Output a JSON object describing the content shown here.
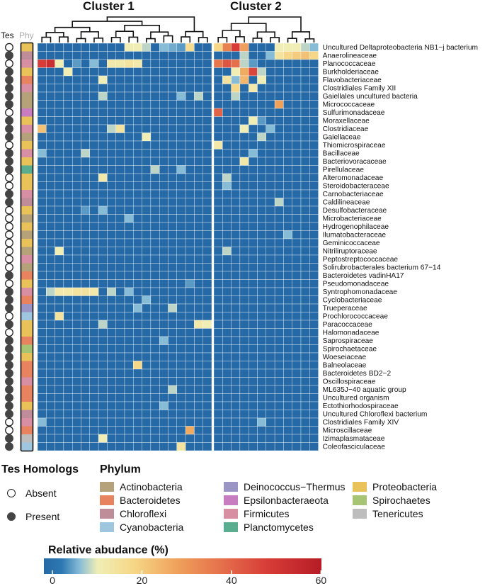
{
  "chart_data": {
    "type": "heatmap",
    "column_groups": [
      {
        "title": "Cluster 1",
        "n_columns": 20
      },
      {
        "title": "Cluster 2",
        "n_columns": 12
      }
    ],
    "annotation_headers": [
      "Tes",
      "Phy"
    ],
    "rows": [
      {
        "label": "Uncultured Deltaproteobacteria NB1−j bacterium",
        "tes": "Absent",
        "phylum": "Proteobacteria"
      },
      {
        "label": "Anaerolineaceae",
        "tes": "Present",
        "phylum": "Chloroflexi"
      },
      {
        "label": "Planococcaceae",
        "tes": "Absent",
        "phylum": "Firmicutes"
      },
      {
        "label": "Burkholderiaceae",
        "tes": "Present",
        "phylum": "Proteobacteria"
      },
      {
        "label": "Flavobacteriaceae",
        "tes": "Present",
        "phylum": "Bacteroidetes"
      },
      {
        "label": "Clostridiales Family XII",
        "tes": "Present",
        "phylum": "Firmicutes"
      },
      {
        "label": "Gaiellales uncultured bacteria",
        "tes": "Present",
        "phylum": "Actinobacteria"
      },
      {
        "label": "Micrococcaceae",
        "tes": "Present",
        "phylum": "Actinobacteria"
      },
      {
        "label": "Sulfurimonadaceae",
        "tes": "Absent",
        "phylum": "Epsilonbacteraeota"
      },
      {
        "label": "Moraxellaceae",
        "tes": "Present",
        "phylum": "Proteobacteria"
      },
      {
        "label": "Clostridiaceae",
        "tes": "Present",
        "phylum": "Firmicutes"
      },
      {
        "label": "Gaiellaceae",
        "tes": "Present",
        "phylum": "Actinobacteria"
      },
      {
        "label": "Thiomicrospiraceae",
        "tes": "Absent",
        "phylum": "Proteobacteria"
      },
      {
        "label": "Bacillaceae",
        "tes": "Present",
        "phylum": "Firmicutes"
      },
      {
        "label": "Bacteriovoracaceae",
        "tes": "Present",
        "phylum": "Proteobacteria"
      },
      {
        "label": "Pirellulaceae",
        "tes": "Present",
        "phylum": "Planctomycetes"
      },
      {
        "label": "Alteromonadaceae",
        "tes": "Absent",
        "phylum": "Proteobacteria"
      },
      {
        "label": "Steroidobacteraceae",
        "tes": "Absent",
        "phylum": "Proteobacteria"
      },
      {
        "label": "Carnobacteriaceae",
        "tes": "Present",
        "phylum": "Firmicutes"
      },
      {
        "label": "Caldilineaceae",
        "tes": "Present",
        "phylum": "Chloroflexi"
      },
      {
        "label": "Desulfobacteraceae",
        "tes": "Absent",
        "phylum": "Proteobacteria"
      },
      {
        "label": "Microbacteriaceae",
        "tes": "Absent",
        "phylum": "Actinobacteria"
      },
      {
        "label": "Hydrogenophilaceae",
        "tes": "Absent",
        "phylum": "Proteobacteria"
      },
      {
        "label": "Ilumatobacteraceae",
        "tes": "Absent",
        "phylum": "Actinobacteria"
      },
      {
        "label": "Geminicoccaceae",
        "tes": "Absent",
        "phylum": "Proteobacteria"
      },
      {
        "label": "Nitriliruptoraceae",
        "tes": "Absent",
        "phylum": "Actinobacteria"
      },
      {
        "label": "Peptostreptococcaceae",
        "tes": "Absent",
        "phylum": "Firmicutes"
      },
      {
        "label": "Solirubrobacterales bacterium 67−14",
        "tes": "Absent",
        "phylum": "Actinobacteria"
      },
      {
        "label": "Bacteroidetes vadinHA17",
        "tes": "Present",
        "phylum": "Bacteroidetes"
      },
      {
        "label": "Pseudomonadaceae",
        "tes": "Absent",
        "phylum": "Proteobacteria"
      },
      {
        "label": "Syntrophomonadaceae",
        "tes": "Present",
        "phylum": "Firmicutes"
      },
      {
        "label": "Cyclobacteriaceae",
        "tes": "Present",
        "phylum": "Bacteroidetes"
      },
      {
        "label": "Trueperaceae",
        "tes": "Present",
        "phylum": "Deinococcus−Thermus"
      },
      {
        "label": "Prochlorococcaceae",
        "tes": "Absent",
        "phylum": "Cyanobacteria"
      },
      {
        "label": "Paracoccaceae",
        "tes": "Present",
        "phylum": "Proteobacteria"
      },
      {
        "label": "Halomonadaceae",
        "tes": "Absent",
        "phylum": "Proteobacteria"
      },
      {
        "label": "Saprospiraceae",
        "tes": "Present",
        "phylum": "Bacteroidetes"
      },
      {
        "label": "Spirochaetaceae",
        "tes": "Present",
        "phylum": "Spirochaetes"
      },
      {
        "label": "Woeseiaceae",
        "tes": "Present",
        "phylum": "Proteobacteria"
      },
      {
        "label": "Balneolaceae",
        "tes": "Present",
        "phylum": "Bacteroidetes"
      },
      {
        "label": "Bacteroidetes BD2−2",
        "tes": "Present",
        "phylum": "Bacteroidetes"
      },
      {
        "label": "Oscillospiraceae",
        "tes": "Present",
        "phylum": "Firmicutes"
      },
      {
        "label": "ML635J−40 aquatic group",
        "tes": "Present",
        "phylum": "Bacteroidetes"
      },
      {
        "label": "Uncultured organism",
        "tes": "Present",
        "phylum": "Bacteroidetes"
      },
      {
        "label": "Ectothiorhodospiraceae",
        "tes": "Present",
        "phylum": "Proteobacteria"
      },
      {
        "label": "Uncultured Chloroflexi bacterium",
        "tes": "Present",
        "phylum": "Chloroflexi"
      },
      {
        "label": "Clostridiales Family XIV",
        "tes": "Absent",
        "phylum": "Firmicutes"
      },
      {
        "label": "Microscillaceae",
        "tes": "Absent",
        "phylum": "Bacteroidetes"
      },
      {
        "label": "Izimaplasmataceae",
        "tes": "Present",
        "phylum": "Tenericutes"
      },
      {
        "label": "Coleofasciculaceae",
        "tes": "Present",
        "phylum": "Cyanobacteria"
      }
    ],
    "highlights": [
      [
        0,
        20,
        20
      ],
      [
        0,
        21,
        36
      ],
      [
        0,
        22,
        50
      ],
      [
        0,
        23,
        30
      ],
      [
        0,
        17,
        18
      ],
      [
        0,
        10,
        12
      ],
      [
        0,
        11,
        12
      ],
      [
        0,
        12,
        10
      ],
      [
        0,
        14,
        8
      ],
      [
        0,
        15,
        7
      ],
      [
        0,
        16,
        6
      ],
      [
        0,
        27,
        12
      ],
      [
        0,
        28,
        12
      ],
      [
        0,
        29,
        12
      ],
      [
        0,
        30,
        10
      ],
      [
        0,
        31,
        8
      ],
      [
        1,
        26,
        8
      ],
      [
        1,
        27,
        16
      ],
      [
        1,
        28,
        20
      ],
      [
        1,
        29,
        22
      ],
      [
        1,
        30,
        24
      ],
      [
        1,
        31,
        20
      ],
      [
        1,
        23,
        10
      ],
      [
        2,
        0,
        50
      ],
      [
        2,
        1,
        55
      ],
      [
        2,
        2,
        12
      ],
      [
        2,
        4,
        6
      ],
      [
        2,
        6,
        8
      ],
      [
        2,
        8,
        14
      ],
      [
        2,
        9,
        14
      ],
      [
        2,
        10,
        16
      ],
      [
        2,
        11,
        14
      ],
      [
        2,
        20,
        38
      ],
      [
        2,
        21,
        45
      ],
      [
        2,
        22,
        40
      ],
      [
        2,
        23,
        10
      ],
      [
        2,
        24,
        6
      ],
      [
        3,
        3,
        12
      ],
      [
        3,
        22,
        12
      ],
      [
        3,
        23,
        28
      ],
      [
        3,
        24,
        48
      ],
      [
        3,
        25,
        10
      ],
      [
        4,
        7,
        12
      ],
      [
        4,
        21,
        16
      ],
      [
        4,
        22,
        8
      ],
      [
        4,
        23,
        26
      ],
      [
        4,
        25,
        12
      ],
      [
        5,
        22,
        20
      ],
      [
        5,
        24,
        14
      ],
      [
        6,
        7,
        10
      ],
      [
        6,
        16,
        8
      ],
      [
        6,
        18,
        10
      ],
      [
        6,
        22,
        10
      ],
      [
        7,
        27,
        30
      ],
      [
        8,
        20,
        42
      ],
      [
        9,
        24,
        12
      ],
      [
        9,
        25,
        6
      ],
      [
        10,
        0,
        24
      ],
      [
        10,
        8,
        10
      ],
      [
        10,
        9,
        16
      ],
      [
        10,
        23,
        12
      ],
      [
        10,
        26,
        8
      ],
      [
        11,
        12,
        12
      ],
      [
        11,
        25,
        10
      ],
      [
        12,
        20,
        14
      ],
      [
        13,
        0,
        8
      ],
      [
        13,
        5,
        10
      ],
      [
        13,
        24,
        8
      ],
      [
        14,
        23,
        14
      ],
      [
        15,
        13,
        10
      ],
      [
        15,
        16,
        8
      ],
      [
        16,
        7,
        14
      ],
      [
        16,
        21,
        10
      ],
      [
        17,
        21,
        8
      ],
      [
        19,
        27,
        10
      ],
      [
        20,
        5,
        6
      ],
      [
        20,
        7,
        8
      ],
      [
        21,
        10,
        8
      ],
      [
        23,
        28,
        8
      ],
      [
        25,
        2,
        12
      ],
      [
        25,
        21,
        10
      ],
      [
        29,
        17,
        6
      ],
      [
        30,
        1,
        10
      ],
      [
        30,
        2,
        14
      ],
      [
        30,
        3,
        14
      ],
      [
        30,
        4,
        16
      ],
      [
        30,
        5,
        16
      ],
      [
        30,
        6,
        14
      ],
      [
        30,
        8,
        10
      ],
      [
        30,
        10,
        8
      ],
      [
        31,
        12,
        8
      ],
      [
        32,
        11,
        8
      ],
      [
        32,
        15,
        10
      ],
      [
        33,
        2,
        16
      ],
      [
        34,
        7,
        10
      ],
      [
        34,
        18,
        14
      ],
      [
        34,
        19,
        12
      ],
      [
        36,
        14,
        8
      ],
      [
        39,
        11,
        20
      ],
      [
        42,
        15,
        10
      ],
      [
        44,
        14,
        8
      ],
      [
        46,
        0,
        8
      ],
      [
        46,
        25,
        8
      ],
      [
        47,
        17,
        28
      ],
      [
        48,
        7,
        12
      ],
      [
        49,
        16,
        16
      ]
    ],
    "colorbar": {
      "title": "Relative abudance (%)",
      "min": 0,
      "max": 62,
      "ticks": [
        0,
        20,
        40,
        60
      ]
    }
  },
  "phylum_colors": {
    "Actinobacteria": "#b5a27a",
    "Bacteroidetes": "#e8835f",
    "Chloroflexi": "#bf8c9a",
    "Cyanobacteria": "#9ec6df",
    "Deinococcus−Thermus": "#9b95c6",
    "Epsilonbacteraeota": "#c77dbf",
    "Firmicutes": "#d88ea3",
    "Planctomycetes": "#5aad8f",
    "Proteobacteria": "#e9c25a",
    "Spirochaetes": "#a7c474",
    "Tenericutes": "#bdbdbd"
  },
  "legend": {
    "tes_title": "Tes Homologs",
    "tes_items": [
      "Absent",
      "Present"
    ],
    "phylum_title": "Phylum",
    "phyla": [
      "Actinobacteria",
      "Bacteroidetes",
      "Chloroflexi",
      "Cyanobacteria",
      "Deinococcus−Thermus",
      "Epsilonbacteraeota",
      "Firmicutes",
      "Planctomycetes",
      "Proteobacteria",
      "Spirochaetes",
      "Tenericutes"
    ]
  }
}
